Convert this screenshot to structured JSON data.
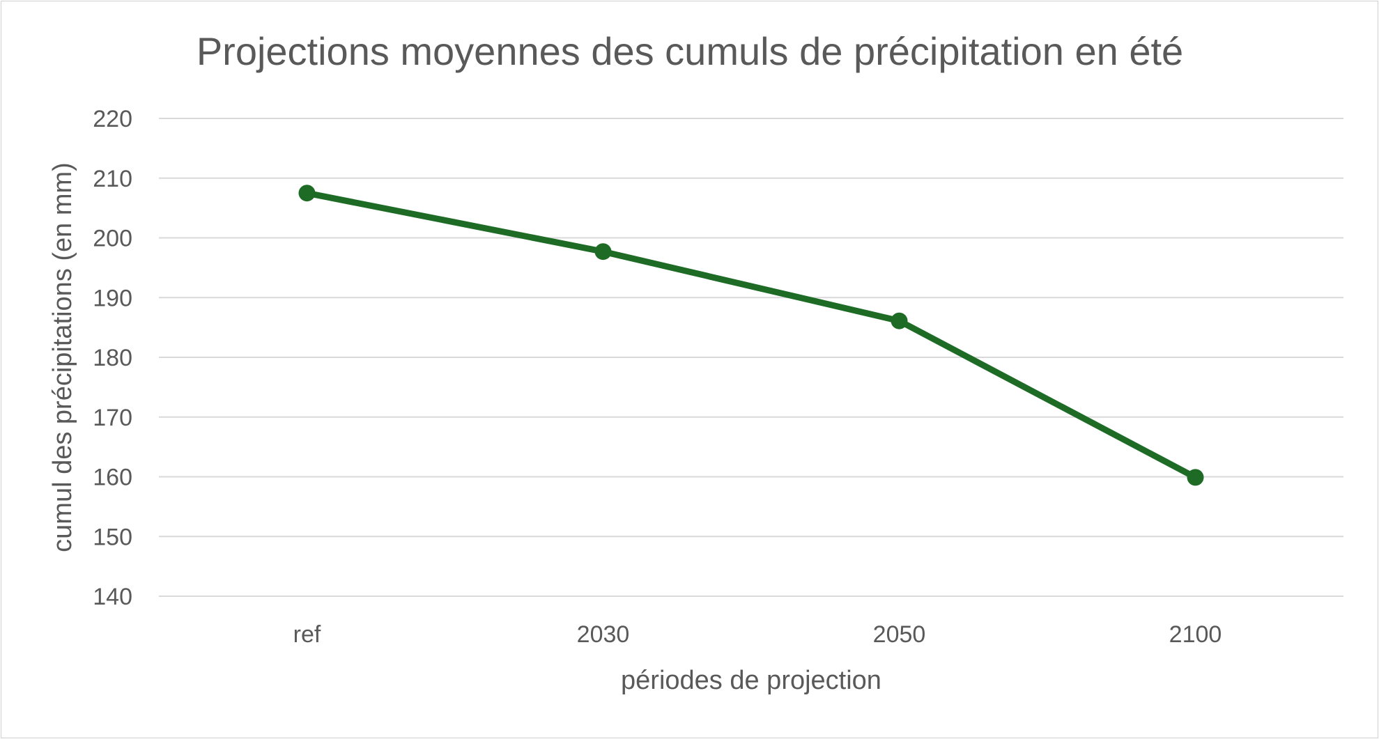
{
  "chart_data": {
    "type": "line",
    "title": "Projections moyennes des cumuls de précipitation en été",
    "xlabel": "périodes de projection",
    "ylabel": "cumul des précipitations (en mm)",
    "categories": [
      "ref",
      "2030",
      "2050",
      "2100"
    ],
    "series": [
      {
        "values": [
          207.5,
          197.7,
          186.1,
          159.9
        ],
        "color": "#1e6b26"
      }
    ],
    "ylim": [
      140,
      220
    ],
    "yticks": [
      "140",
      "150",
      "160",
      "170",
      "180",
      "190",
      "200",
      "210",
      "220"
    ],
    "grid": true,
    "legend": "none"
  }
}
